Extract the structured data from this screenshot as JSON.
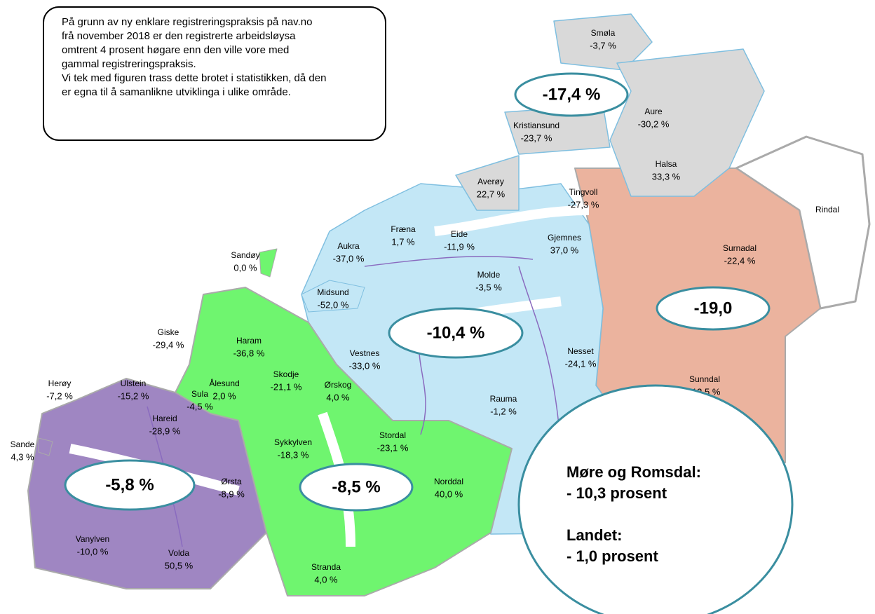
{
  "note": [
    "På grunn av ny enklare registreringspraksis på nav.no",
    "frå november 2018 er den registrerte arbeidsløysa",
    "omtrent 4 prosent høgare enn den ville vore med",
    "gammal registreringspraksis.",
    "Vi tek med figuren trass dette brotet i statistikken, då den",
    "er egna til å samanlikne utviklinga i ulike område."
  ],
  "regions": [
    {
      "label": "-17,4 %"
    },
    {
      "label": "-19,0"
    },
    {
      "label": "-10,4 %"
    },
    {
      "label": "-5,8 %"
    },
    {
      "label": "-8,5 %"
    }
  ],
  "municipalities": [
    {
      "name": "Smøla",
      "value": "-3,7 %"
    },
    {
      "name": "Aure",
      "value": "-30,2 %"
    },
    {
      "name": "Kristiansund",
      "value": "-23,7 %"
    },
    {
      "name": "Halsa",
      "value": "33,3 %"
    },
    {
      "name": "Averøy",
      "value": "22,7 %"
    },
    {
      "name": "Tingvoll",
      "value": "-27,3 %"
    },
    {
      "name": "Rindal"
    },
    {
      "name": "Fræna",
      "value": "1,7 %"
    },
    {
      "name": "Eide",
      "value": "-11,9 %"
    },
    {
      "name": "Gjemnes",
      "value": "37,0 %"
    },
    {
      "name": "Surnadal",
      "value": "-22,4 %"
    },
    {
      "name": "Sandøy",
      "value": "0,0 %"
    },
    {
      "name": "Aukra",
      "value": "-37,0 %"
    },
    {
      "name": "Molde",
      "value": "-3,5 %"
    },
    {
      "name": "Midsund",
      "value": "-52,0 %"
    },
    {
      "name": "Giske",
      "value": "-29,4 %"
    },
    {
      "name": "Haram",
      "value": "-36,8 %"
    },
    {
      "name": "Vestnes",
      "value": "-33,0 %"
    },
    {
      "name": "Nesset",
      "value": "-24,1 %"
    },
    {
      "name": "Skodje",
      "value": "-21,1 %"
    },
    {
      "name": "Ørskog",
      "value": "4,0 %"
    },
    {
      "name": "Ålesund",
      "value": "2,0 %"
    },
    {
      "name": "Sula",
      "value": "-4,5 %"
    },
    {
      "name": "Herøy",
      "value": "-7,2 %"
    },
    {
      "name": "Ulstein",
      "value": "-15,2 %"
    },
    {
      "name": "Sunndal",
      "value": "-12,5 %"
    },
    {
      "name": "Rauma",
      "value": "-1,2 %"
    },
    {
      "name": "Hareid",
      "value": "-28,9 %"
    },
    {
      "name": "Sande",
      "value": "4,3 %"
    },
    {
      "name": "Sykkylven",
      "value": "-18,3 %"
    },
    {
      "name": "Stordal",
      "value": "-23,1 %"
    },
    {
      "name": "Norddal",
      "value": "40,0 %"
    },
    {
      "name": "Ørsta",
      "value": "-8,9 %"
    },
    {
      "name": "Vanylven",
      "value": "-10,0 %"
    },
    {
      "name": "Volda",
      "value": "50,5 %"
    },
    {
      "name": "Stranda",
      "value": "4,0 %"
    }
  ],
  "summary": [
    "Møre og Romsdal:",
    "- 10,3 prosent",
    "Landet:",
    "- 1,0 prosent"
  ]
}
